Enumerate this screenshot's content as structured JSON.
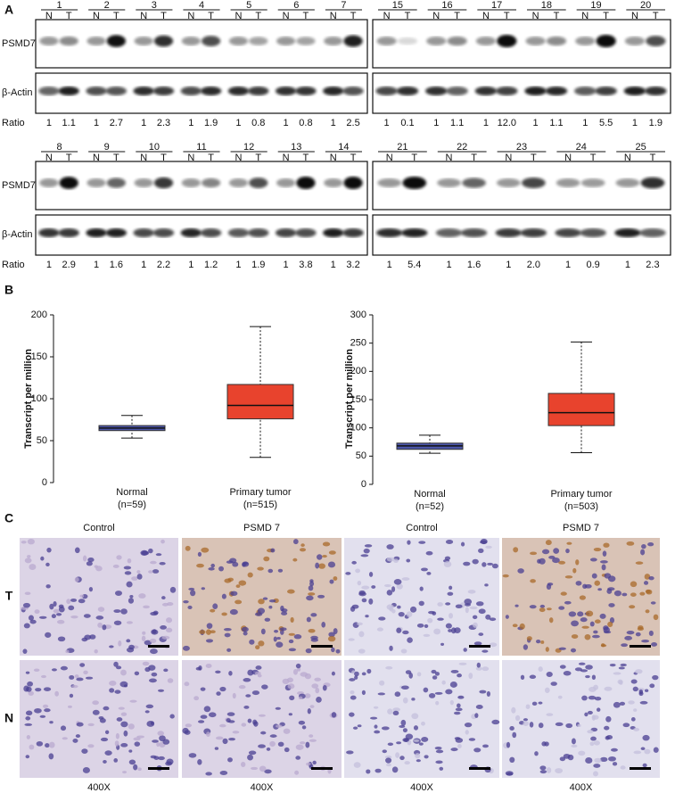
{
  "panel_a": {
    "label": "A",
    "row_labels": [
      "PSMD7",
      "β-Actin",
      "Ratio"
    ],
    "lane_letters": [
      "N",
      "T"
    ],
    "blots": [
      {
        "lanes": [
          "1",
          "2",
          "3",
          "4",
          "5",
          "6",
          "7"
        ],
        "ratios": [
          "1",
          "1.1",
          "1",
          "2.7",
          "1",
          "2.3",
          "1",
          "1.9",
          "1",
          "0.8",
          "1",
          "0.8",
          "1",
          "2.5"
        ]
      },
      {
        "lanes": [
          "15",
          "16",
          "17",
          "18",
          "19",
          "20"
        ],
        "ratios": [
          "1",
          "0.1",
          "1",
          "1.1",
          "1",
          "12.0",
          "1",
          "1.1",
          "1",
          "5.5",
          "1",
          "1.9"
        ]
      },
      {
        "lanes": [
          "8",
          "9",
          "10",
          "11",
          "12",
          "13",
          "14"
        ],
        "ratios": [
          "1",
          "2.9",
          "1",
          "1.6",
          "1",
          "2.2",
          "1",
          "1.2",
          "1",
          "1.9",
          "1",
          "3.8",
          "1",
          "3.2"
        ]
      },
      {
        "lanes": [
          "21",
          "22",
          "23",
          "24",
          "25"
        ],
        "ratios": [
          "1",
          "5.4",
          "1",
          "1.6",
          "1",
          "2.0",
          "1",
          "0.9",
          "1",
          "2.3"
        ]
      }
    ]
  },
  "panel_b": {
    "label": "B"
  },
  "chart_data": [
    {
      "type": "box",
      "ylabel": "Transcript per million",
      "categories": [
        "Normal",
        "Primary tumor"
      ],
      "n_labels": [
        "(n=59)",
        "(n=515)"
      ],
      "colors": [
        "#4b55a8",
        "#e8432d"
      ],
      "min": [
        53,
        30
      ],
      "q1": [
        62,
        76
      ],
      "median": [
        65,
        92
      ],
      "q3": [
        68,
        117
      ],
      "max": [
        80,
        186
      ],
      "ylim": [
        0,
        200
      ],
      "yticks": [
        0,
        50,
        100,
        150,
        200
      ]
    },
    {
      "type": "box",
      "ylabel": "Transcript per million",
      "categories": [
        "Normal",
        "Primary tumor"
      ],
      "n_labels": [
        "(n=52)",
        "(n=503)"
      ],
      "colors": [
        "#4b55a8",
        "#e8432d"
      ],
      "min": [
        55,
        56
      ],
      "q1": [
        62,
        104
      ],
      "median": [
        68,
        127
      ],
      "q3": [
        73,
        161
      ],
      "max": [
        87,
        252
      ],
      "ylim": [
        0,
        300
      ],
      "yticks": [
        0,
        50,
        100,
        150,
        200,
        250,
        300
      ]
    }
  ],
  "panel_c": {
    "label": "C",
    "column_titles": [
      "Control",
      "PSMD 7",
      "Control",
      "PSMD 7"
    ],
    "row_labels": [
      "T",
      "N"
    ],
    "magnification": [
      "400X",
      "400X",
      "400X",
      "400X"
    ]
  }
}
